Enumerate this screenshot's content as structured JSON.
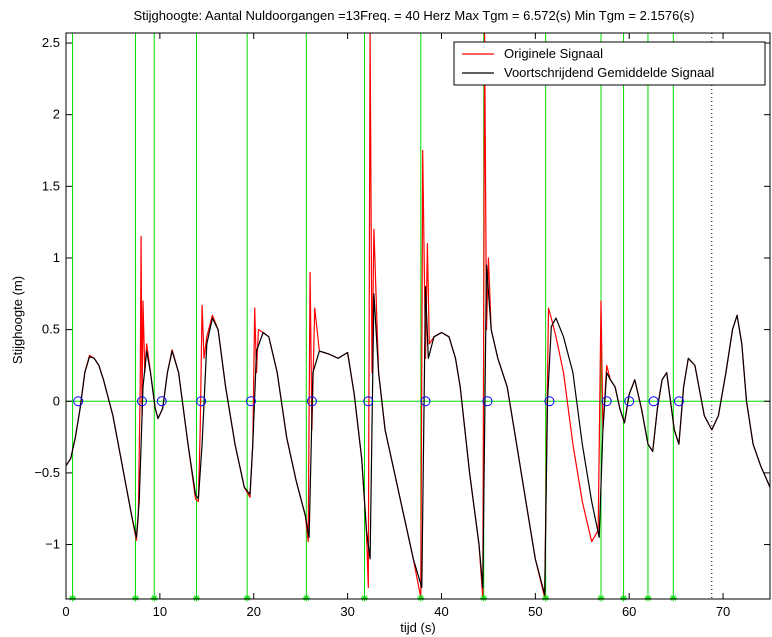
{
  "chart_data": {
    "type": "line",
    "title": "Stijghoogte:  Aantal Nuldoorgangen =13Freq. = 40 Herz  Max Tgm = 6.572(s) Min Tgm = 2.1576(s)",
    "xlabel": "tijd (s)",
    "ylabel": "Stijghoogte (m)",
    "xlim": [
      0,
      75
    ],
    "ylim": [
      -1.38,
      2.57
    ],
    "xticks": [
      0,
      10,
      20,
      30,
      40,
      50,
      60,
      70
    ],
    "xtick_labels": [
      "0",
      "10",
      "20",
      "30",
      "40",
      "50",
      "60",
      "70"
    ],
    "yticks": [
      -1,
      -0.5,
      0,
      0.5,
      1,
      1.5,
      2,
      2.5
    ],
    "ytick_labels": [
      "−1",
      "−0.5",
      "0",
      "0.5",
      "1",
      "1.5",
      "2",
      "2.5"
    ],
    "legend": {
      "position": "top-right",
      "entries": [
        "Originele Signaal",
        "Voortschrijdend Gemiddelde Signaal"
      ]
    },
    "colors": {
      "original": "#ff0000",
      "smoothed": "#000000",
      "crossing_lines": "#00dd00",
      "crossing_markers": "#0000ff"
    },
    "series": [
      {
        "name": "Voortschrijdend Gemiddelde Signaal",
        "x": [
          0,
          0.5,
          1,
          1.5,
          2,
          2.5,
          3,
          3.5,
          4,
          5,
          6,
          7,
          7.5,
          7.8,
          8.2,
          8.6,
          9,
          9.5,
          9.8,
          10.3,
          10.8,
          11.3,
          12,
          13,
          13.8,
          14.1,
          14.5,
          15,
          15.6,
          16.2,
          17,
          18,
          19,
          19.6,
          19.9,
          20.3,
          21,
          21.6,
          22.5,
          23.5,
          24.5,
          25.5,
          25.9,
          26.3,
          27,
          28,
          29,
          30,
          30.7,
          31.5,
          32,
          32.4,
          32.8,
          33.3,
          34,
          35,
          36,
          37,
          37.9,
          38.3,
          38.6,
          39.2,
          40,
          40.8,
          41.5,
          42,
          42.5,
          43,
          44,
          44.4,
          44.8,
          45.3,
          46,
          47,
          48,
          49,
          50,
          51,
          51.3,
          51.7,
          52.2,
          53,
          54,
          55,
          56,
          56.8,
          57.2,
          57.6,
          58,
          58.5,
          59,
          59.5,
          60,
          60.6,
          61.3,
          62,
          62.5,
          63,
          63.5,
          64,
          64.8,
          65.3,
          65.8,
          66.3,
          67,
          68,
          68.8,
          69.5,
          70.3,
          71,
          71.5,
          72,
          72.5,
          73.2,
          74,
          75
        ],
        "y": [
          -0.45,
          -0.4,
          -0.25,
          -0.05,
          0.2,
          0.31,
          0.3,
          0.25,
          0.15,
          -0.1,
          -0.45,
          -0.8,
          -0.95,
          -0.7,
          0.1,
          0.35,
          0.2,
          -0.05,
          -0.12,
          -0.05,
          0.2,
          0.35,
          0.2,
          -0.3,
          -0.65,
          -0.68,
          -0.3,
          0.4,
          0.58,
          0.5,
          0.1,
          -0.3,
          -0.6,
          -0.65,
          -0.3,
          0.35,
          0.48,
          0.45,
          0.2,
          -0.25,
          -0.55,
          -0.8,
          -0.95,
          0.2,
          0.35,
          0.33,
          0.3,
          0.34,
          0.05,
          -0.4,
          -0.9,
          -1.1,
          0.75,
          0.2,
          -0.2,
          -0.5,
          -0.8,
          -1.1,
          -1.3,
          0.8,
          0.3,
          0.45,
          0.48,
          0.45,
          0.3,
          0.1,
          -0.2,
          -0.5,
          -1.0,
          -1.3,
          0.95,
          0.5,
          0.3,
          0.1,
          -0.3,
          -0.7,
          -1.1,
          -1.35,
          0.0,
          0.52,
          0.58,
          0.45,
          0.2,
          -0.3,
          -0.7,
          -0.95,
          -0.2,
          0.2,
          0.15,
          0.1,
          -0.05,
          -0.15,
          0.05,
          0.15,
          -0.05,
          -0.3,
          -0.35,
          -0.05,
          0.15,
          0.2,
          -0.2,
          -0.3,
          0.1,
          0.3,
          0.25,
          -0.1,
          -0.2,
          -0.1,
          0.2,
          0.5,
          0.6,
          0.4,
          0.0,
          -0.3,
          -0.45,
          -0.6
        ]
      },
      {
        "name": "Originele Signaal",
        "x": [
          0,
          0.5,
          1,
          1.5,
          2,
          2.5,
          3,
          3.5,
          4,
          5,
          6,
          7,
          7.5,
          7.7,
          7.9,
          8.0,
          8.1,
          8.2,
          8.4,
          8.6,
          9,
          9.5,
          9.8,
          10.3,
          10.8,
          11.3,
          12,
          13,
          13.8,
          14.1,
          14.3,
          14.5,
          14.7,
          15,
          15.6,
          16.2,
          17,
          18,
          19,
          19.6,
          19.9,
          20.1,
          20.3,
          20.5,
          21,
          21.6,
          22.5,
          23.5,
          24.5,
          25.5,
          25.8,
          26.0,
          26.2,
          26.5,
          27,
          28,
          29,
          30,
          30.7,
          31.5,
          32,
          32.2,
          32.4,
          32.6,
          32.8,
          33.3,
          34,
          35,
          36,
          37,
          37.8,
          38.0,
          38.3,
          38.5,
          38.7,
          39.2,
          40,
          40.8,
          41.5,
          42,
          42.5,
          43,
          44,
          44.4,
          44.6,
          44.8,
          45.0,
          45.3,
          46,
          47,
          48,
          49,
          50,
          51,
          51.2,
          51.4,
          51.7,
          52.2,
          53,
          54,
          55,
          56,
          56.7,
          57.0,
          57.2,
          57.6,
          58,
          58.5,
          59,
          59.5,
          60,
          60.6,
          61.3,
          62,
          62.5,
          63,
          63.5,
          64,
          64.8,
          65.3,
          65.8,
          66.3,
          67,
          68,
          68.8,
          69.5,
          70.3,
          71,
          71.5,
          72,
          72.5,
          73.2,
          74,
          75
        ],
        "y": [
          -0.45,
          -0.4,
          -0.25,
          -0.05,
          0.2,
          0.32,
          0.3,
          0.25,
          0.15,
          -0.1,
          -0.45,
          -0.8,
          -0.97,
          -0.8,
          0.1,
          1.15,
          -0.1,
          0.7,
          0.2,
          0.4,
          0.2,
          -0.05,
          -0.12,
          -0.05,
          0.2,
          0.36,
          0.2,
          -0.3,
          -0.68,
          -0.7,
          -0.2,
          0.67,
          0.3,
          0.45,
          0.6,
          0.5,
          0.1,
          -0.3,
          -0.6,
          -0.67,
          -0.3,
          0.65,
          0.2,
          0.5,
          0.48,
          0.45,
          0.2,
          -0.25,
          -0.55,
          -0.8,
          -0.98,
          0.9,
          -0.2,
          0.65,
          0.35,
          0.33,
          0.3,
          0.34,
          0.05,
          -0.4,
          -0.9,
          -1.3,
          2.57,
          0.2,
          1.2,
          0.2,
          -0.2,
          -0.5,
          -0.8,
          -1.1,
          -1.37,
          1.75,
          0.3,
          1.1,
          0.4,
          0.45,
          0.48,
          0.45,
          0.3,
          0.1,
          -0.2,
          -0.5,
          -1.0,
          -1.37,
          2.57,
          0.5,
          1.0,
          0.5,
          0.3,
          0.1,
          -0.3,
          -0.7,
          -1.1,
          -1.37,
          -0.3,
          0.65,
          0.58,
          0.45,
          0.2,
          -0.3,
          -0.7,
          -0.98,
          -0.9,
          0.7,
          -0.2,
          0.25,
          0.15,
          0.1,
          -0.05,
          -0.15,
          0.05,
          0.15,
          -0.05,
          -0.3,
          -0.35,
          -0.05,
          0.15,
          0.2,
          -0.2,
          -0.3,
          0.1,
          0.3,
          0.25,
          -0.1,
          -0.2,
          -0.1,
          0.2,
          0.5,
          0.6,
          0.4,
          0.0,
          -0.3,
          -0.45,
          -0.6
        ]
      }
    ],
    "zero_crossings": {
      "down_crossings": [
        0.7,
        7.4,
        9.4,
        13.9,
        19.3,
        25.6,
        31.8,
        37.8,
        44.5,
        51.1,
        57.0,
        59.4,
        62.0,
        64.7
      ],
      "up_crossings": [
        1.3,
        8.1,
        10.2,
        14.4,
        19.7,
        26.2,
        32.2,
        38.3,
        44.9,
        51.5,
        57.6,
        60.0,
        62.6,
        65.3
      ],
      "dotted_line_x": 68.8
    }
  }
}
